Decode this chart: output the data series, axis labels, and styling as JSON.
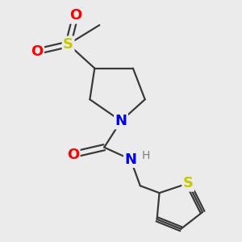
{
  "background_color": "#ebebeb",
  "bond_color": "#3a3a3a",
  "bond_width": 1.6,
  "atom_colors": {
    "S_sulfonyl": "#c8c800",
    "S_thiophene": "#c8c800",
    "O": "#ff0000",
    "N": "#0000ee",
    "H": "#808080"
  },
  "figsize": [
    3.0,
    3.0
  ],
  "dpi": 100,
  "xlim": [
    0,
    10
  ],
  "ylim": [
    0,
    10
  ],
  "font_size_atom": 11.5,
  "font_size_H": 10
}
